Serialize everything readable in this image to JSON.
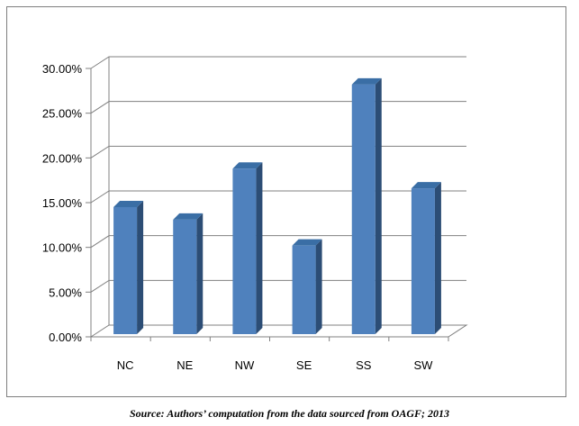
{
  "chart_data": {
    "type": "bar",
    "categories": [
      "NC",
      "NE",
      "NW",
      "SE",
      "SS",
      "SW"
    ],
    "values": [
      14.2,
      12.8,
      18.5,
      9.9,
      27.9,
      16.3
    ],
    "y_tick_labels": [
      "0.00%",
      "5.00%",
      "10.00%",
      "15.00%",
      "20.00%",
      "25.00%",
      "30.00%"
    ],
    "ylim": [
      0,
      30
    ],
    "grid": true,
    "legend": "none",
    "style": "3d-bar",
    "bar_color": "#4f81bd",
    "bar_side_color": "#2c4d75",
    "bar_top_color": "#3a6ea5",
    "grid_color": "#808080"
  },
  "caption": "Source: Authors’ computation from the data sourced from OAGF; 2013"
}
